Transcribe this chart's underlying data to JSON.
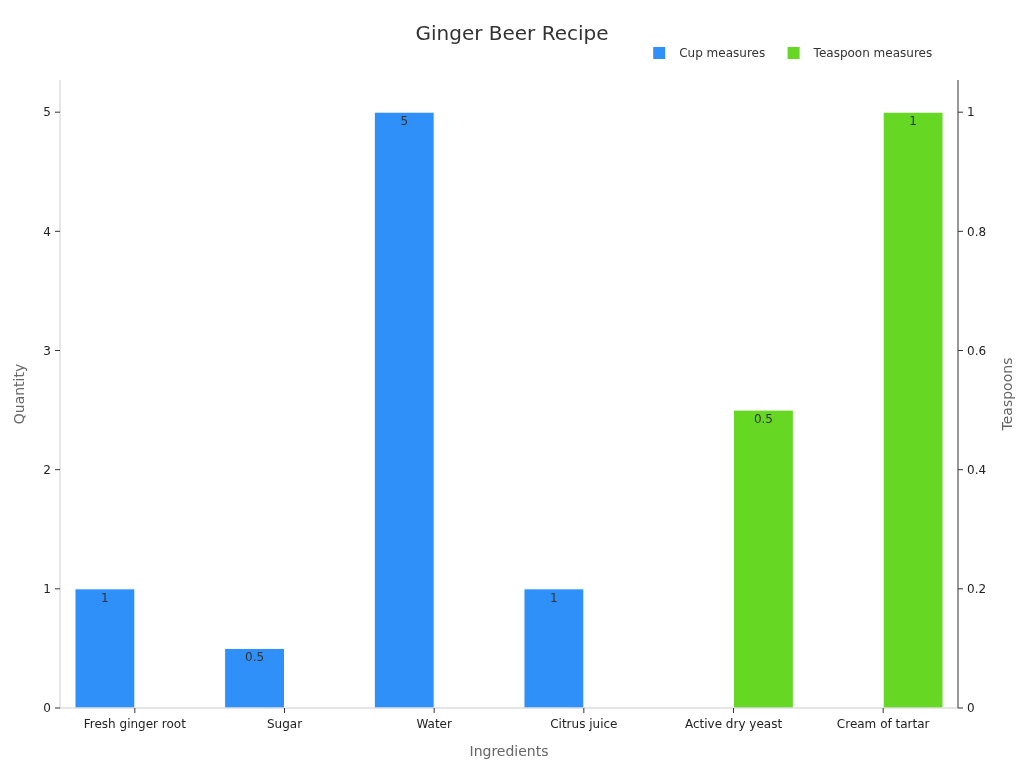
{
  "chart_data": {
    "type": "bar",
    "title": "Ginger Beer Recipe",
    "xlabel": "Ingredients",
    "ylabel": "Quantity",
    "y2label": "Teaspoons",
    "categories": [
      "Fresh ginger root",
      "Sugar",
      "Water",
      "Citrus juice",
      "Active dry yeast",
      "Cream of tartar"
    ],
    "series": [
      {
        "name": "Cup measures",
        "color": "#2e90f8",
        "values": [
          1,
          0.5,
          5,
          1,
          null,
          null
        ]
      },
      {
        "name": "Teaspoon measures",
        "color": "#66d823",
        "axis": "y2",
        "values": [
          null,
          null,
          null,
          null,
          0.5,
          1
        ]
      }
    ],
    "ylim": [
      0,
      5.27
    ],
    "yticks": [
      0,
      1,
      2,
      3,
      4,
      5
    ],
    "y2lim": [
      0,
      1.054
    ],
    "y2ticks": [
      0,
      0.2,
      0.4,
      0.6,
      0.8,
      1
    ],
    "data_labels": true,
    "legend": "top right",
    "grid": false
  }
}
